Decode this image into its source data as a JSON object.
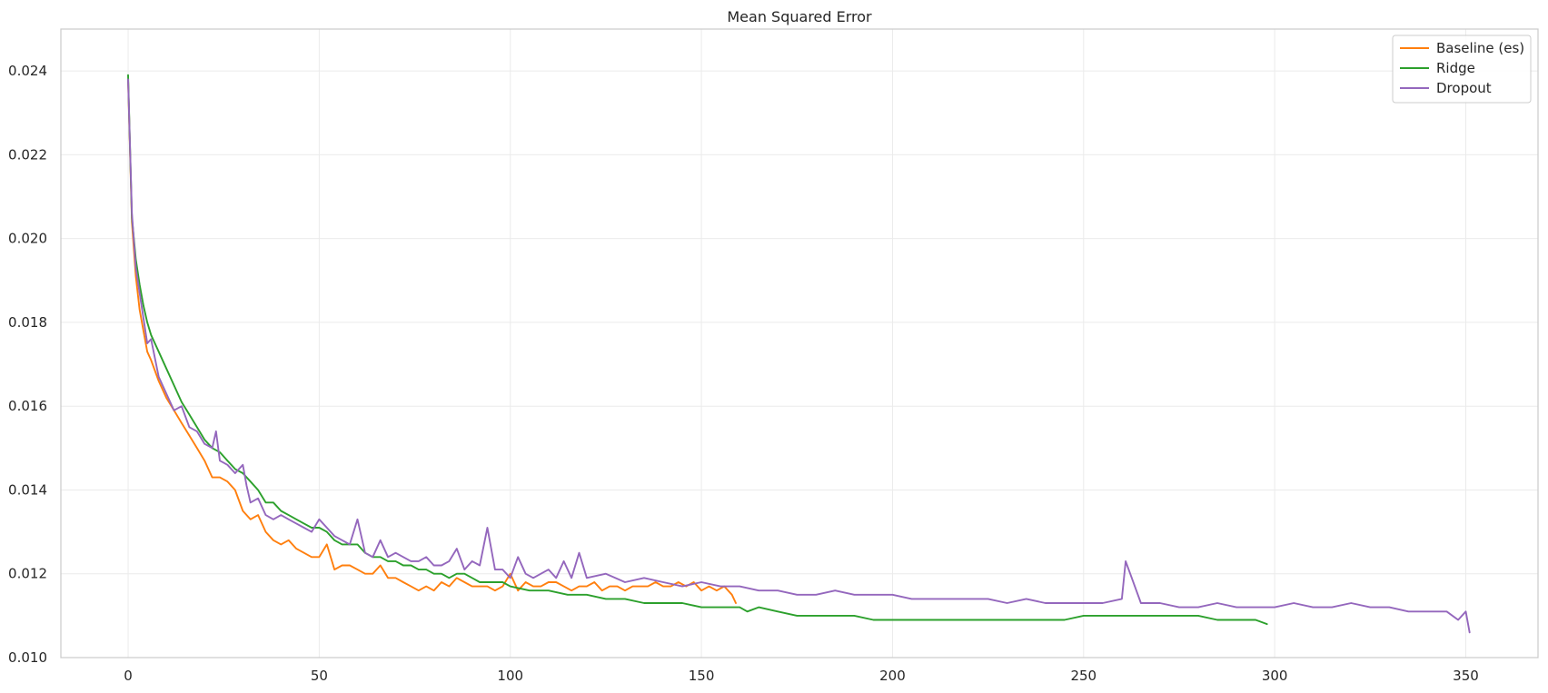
{
  "chart_data": {
    "type": "line",
    "title": "Mean Squared Error",
    "xlabel": "",
    "ylabel": "",
    "xlim": [
      -17.6,
      368.9
    ],
    "ylim": [
      0.01,
      0.025
    ],
    "xticks": [
      0,
      50,
      100,
      150,
      200,
      250,
      300,
      350
    ],
    "yticks": [
      0.01,
      0.012,
      0.014,
      0.016,
      0.018,
      0.02,
      0.022,
      0.024
    ],
    "ytick_labels": [
      "0.010",
      "0.012",
      "0.014",
      "0.016",
      "0.018",
      "0.020",
      "0.022",
      "0.024"
    ],
    "grid": true,
    "legend_position": "top-right",
    "series": [
      {
        "name": "Baseline (es)",
        "color": "#ff7f0e",
        "x": [
          0,
          1,
          2,
          3,
          4,
          5,
          6,
          8,
          10,
          12,
          14,
          16,
          18,
          20,
          22,
          24,
          26,
          28,
          30,
          32,
          34,
          36,
          38,
          40,
          42,
          44,
          46,
          48,
          50,
          52,
          54,
          56,
          58,
          60,
          62,
          64,
          66,
          68,
          70,
          72,
          74,
          76,
          78,
          80,
          82,
          84,
          86,
          88,
          90,
          92,
          94,
          96,
          98,
          100,
          102,
          104,
          106,
          108,
          110,
          112,
          114,
          116,
          118,
          120,
          122,
          124,
          126,
          128,
          130,
          132,
          134,
          136,
          138,
          140,
          142,
          144,
          146,
          148,
          150,
          152,
          154,
          156,
          158,
          159
        ],
        "values": [
          0.0238,
          0.0204,
          0.0191,
          0.0183,
          0.0178,
          0.0173,
          0.0171,
          0.0166,
          0.0162,
          0.0159,
          0.0156,
          0.0153,
          0.015,
          0.0147,
          0.0143,
          0.0143,
          0.0142,
          0.014,
          0.0135,
          0.0133,
          0.0134,
          0.013,
          0.0128,
          0.0127,
          0.0128,
          0.0126,
          0.0125,
          0.0124,
          0.0124,
          0.0127,
          0.0121,
          0.0122,
          0.0122,
          0.0121,
          0.012,
          0.012,
          0.0122,
          0.0119,
          0.0119,
          0.0118,
          0.0117,
          0.0116,
          0.0117,
          0.0116,
          0.0118,
          0.0117,
          0.0119,
          0.0118,
          0.0117,
          0.0117,
          0.0117,
          0.0116,
          0.0117,
          0.012,
          0.0116,
          0.0118,
          0.0117,
          0.0117,
          0.0118,
          0.0118,
          0.0117,
          0.0116,
          0.0117,
          0.0117,
          0.0118,
          0.0116,
          0.0117,
          0.0117,
          0.0116,
          0.0117,
          0.0117,
          0.0117,
          0.0118,
          0.0117,
          0.0117,
          0.0118,
          0.0117,
          0.0118,
          0.0116,
          0.0117,
          0.0116,
          0.0117,
          0.0115,
          0.0113
        ]
      },
      {
        "name": "Ridge",
        "color": "#2ca02c",
        "x": [
          0,
          1,
          2,
          3,
          4,
          5,
          6,
          8,
          10,
          12,
          14,
          16,
          18,
          20,
          22,
          24,
          26,
          28,
          30,
          32,
          34,
          36,
          38,
          40,
          42,
          44,
          46,
          48,
          50,
          52,
          54,
          56,
          58,
          60,
          62,
          64,
          66,
          68,
          70,
          72,
          74,
          76,
          78,
          80,
          82,
          84,
          86,
          88,
          90,
          92,
          94,
          96,
          98,
          100,
          105,
          110,
          115,
          120,
          125,
          130,
          135,
          140,
          145,
          150,
          155,
          160,
          162,
          165,
          170,
          175,
          180,
          185,
          190,
          195,
          200,
          205,
          210,
          215,
          220,
          225,
          230,
          235,
          240,
          245,
          250,
          255,
          260,
          265,
          270,
          275,
          280,
          285,
          290,
          295,
          298
        ],
        "values": [
          0.0239,
          0.0205,
          0.0195,
          0.0189,
          0.0184,
          0.018,
          0.0177,
          0.0173,
          0.0169,
          0.0165,
          0.0161,
          0.0158,
          0.0155,
          0.0152,
          0.015,
          0.0149,
          0.0147,
          0.0145,
          0.0144,
          0.0142,
          0.014,
          0.0137,
          0.0137,
          0.0135,
          0.0134,
          0.0133,
          0.0132,
          0.0131,
          0.0131,
          0.013,
          0.0128,
          0.0127,
          0.0127,
          0.0127,
          0.0125,
          0.0124,
          0.0124,
          0.0123,
          0.0123,
          0.0122,
          0.0122,
          0.0121,
          0.0121,
          0.012,
          0.012,
          0.0119,
          0.012,
          0.012,
          0.0119,
          0.0118,
          0.0118,
          0.0118,
          0.0118,
          0.0117,
          0.0116,
          0.0116,
          0.0115,
          0.0115,
          0.0114,
          0.0114,
          0.0113,
          0.0113,
          0.0113,
          0.0112,
          0.0112,
          0.0112,
          0.0111,
          0.0112,
          0.0111,
          0.011,
          0.011,
          0.011,
          0.011,
          0.0109,
          0.0109,
          0.0109,
          0.0109,
          0.0109,
          0.0109,
          0.0109,
          0.0109,
          0.0109,
          0.0109,
          0.0109,
          0.011,
          0.011,
          0.011,
          0.011,
          0.011,
          0.011,
          0.011,
          0.0109,
          0.0109,
          0.0109,
          0.0108
        ]
      },
      {
        "name": "Dropout",
        "color": "#9467bd",
        "x": [
          0,
          1,
          2,
          3,
          4,
          5,
          6,
          8,
          10,
          12,
          14,
          16,
          18,
          20,
          22,
          23,
          24,
          26,
          28,
          30,
          31,
          32,
          34,
          36,
          38,
          40,
          42,
          44,
          46,
          48,
          50,
          52,
          54,
          56,
          58,
          60,
          62,
          64,
          66,
          68,
          70,
          72,
          74,
          76,
          78,
          80,
          82,
          84,
          86,
          88,
          90,
          92,
          94,
          96,
          98,
          100,
          102,
          104,
          106,
          108,
          110,
          112,
          114,
          116,
          118,
          120,
          125,
          130,
          135,
          140,
          145,
          150,
          155,
          160,
          165,
          170,
          175,
          180,
          185,
          190,
          195,
          200,
          205,
          210,
          215,
          220,
          225,
          230,
          235,
          240,
          245,
          250,
          255,
          260,
          261,
          265,
          270,
          275,
          280,
          285,
          290,
          295,
          300,
          305,
          310,
          315,
          320,
          325,
          330,
          335,
          340,
          345,
          348,
          350,
          351
        ],
        "values": [
          0.0238,
          0.0206,
          0.0193,
          0.0187,
          0.0181,
          0.0175,
          0.0176,
          0.0167,
          0.0163,
          0.0159,
          0.016,
          0.0155,
          0.0154,
          0.0151,
          0.015,
          0.0154,
          0.0147,
          0.0146,
          0.0144,
          0.0146,
          0.0141,
          0.0137,
          0.0138,
          0.0134,
          0.0133,
          0.0134,
          0.0133,
          0.0132,
          0.0131,
          0.013,
          0.0133,
          0.0131,
          0.0129,
          0.0128,
          0.0127,
          0.0133,
          0.0125,
          0.0124,
          0.0128,
          0.0124,
          0.0125,
          0.0124,
          0.0123,
          0.0123,
          0.0124,
          0.0122,
          0.0122,
          0.0123,
          0.0126,
          0.0121,
          0.0123,
          0.0122,
          0.0131,
          0.0121,
          0.0121,
          0.0119,
          0.0124,
          0.012,
          0.0119,
          0.012,
          0.0121,
          0.0119,
          0.0123,
          0.0119,
          0.0125,
          0.0119,
          0.012,
          0.0118,
          0.0119,
          0.0118,
          0.0117,
          0.0118,
          0.0117,
          0.0117,
          0.0116,
          0.0116,
          0.0115,
          0.0115,
          0.0116,
          0.0115,
          0.0115,
          0.0115,
          0.0114,
          0.0114,
          0.0114,
          0.0114,
          0.0114,
          0.0113,
          0.0114,
          0.0113,
          0.0113,
          0.0113,
          0.0113,
          0.0114,
          0.0123,
          0.0113,
          0.0113,
          0.0112,
          0.0112,
          0.0113,
          0.0112,
          0.0112,
          0.0112,
          0.0113,
          0.0112,
          0.0112,
          0.0113,
          0.0112,
          0.0112,
          0.0111,
          0.0111,
          0.0111,
          0.0109,
          0.0111,
          0.0106
        ]
      }
    ]
  }
}
